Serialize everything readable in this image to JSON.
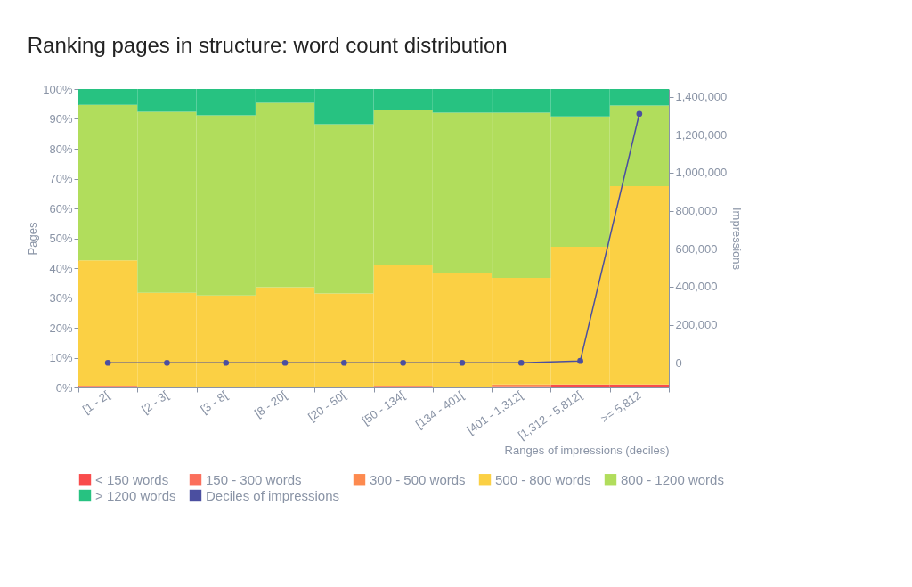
{
  "chart_data": {
    "type": "bar",
    "title": "Ranking pages in structure: word count distribution",
    "xlabel": "Ranges of impressions (deciles)",
    "ylabel": "Pages",
    "y2label": "Impressions",
    "stacked": true,
    "legend": "bottom",
    "grid": false,
    "categories": [
      "[1 - 2[",
      "[2 - 3[",
      "[3 - 8[",
      "[8 - 20[",
      "[20 - 50[",
      "[50 - 134[",
      "[134 - 401[",
      "[401 - 1,312[",
      "[1,312 - 5,812[",
      ">= 5,812"
    ],
    "ylim": [
      0,
      100
    ],
    "yticks": [
      {
        "value": 0,
        "label": "0%"
      },
      {
        "value": 10,
        "label": "10%"
      },
      {
        "value": 20,
        "label": "20%"
      },
      {
        "value": 30,
        "label": "30%"
      },
      {
        "value": 40,
        "label": "40%"
      },
      {
        "value": 50,
        "label": "50%"
      },
      {
        "value": 60,
        "label": "60%"
      },
      {
        "value": 70,
        "label": "70%"
      },
      {
        "value": 80,
        "label": "80%"
      },
      {
        "value": 90,
        "label": "90%"
      },
      {
        "value": 100,
        "label": "100%"
      }
    ],
    "y2lim": [
      -130000,
      1440000
    ],
    "y2ticks": [
      0,
      {
        "value": 200000,
        "label": "200,000"
      },
      {
        "value": 400000,
        "label": "400,000"
      },
      {
        "value": 600000,
        "label": "600,000"
      },
      {
        "value": 800000,
        "label": "800,000"
      },
      {
        "value": 1000000,
        "label": "1,000,000"
      },
      {
        "value": 1200000,
        "label": "1,200,000"
      },
      {
        "value": 1400000,
        "label": "1,400,000"
      }
    ],
    "series": [
      {
        "name": "< 150 words",
        "color": "#f94c4c",
        "values": [
          0.5,
          0,
          0,
          0,
          0,
          0.5,
          0,
          0,
          1.0,
          1.0
        ]
      },
      {
        "name": "150 - 300 words",
        "color": "#fb6f5c",
        "values": [
          0,
          0,
          0,
          0,
          0,
          0,
          0,
          0.5,
          0,
          0
        ]
      },
      {
        "name": "300 - 500 words",
        "color": "#fd8a4f",
        "values": [
          0,
          0,
          0,
          0,
          0,
          0,
          0,
          0.5,
          0,
          0
        ]
      },
      {
        "name": "500 - 800 words",
        "color": "#fbd044",
        "values": [
          42.1,
          31.7,
          30.8,
          33.6,
          31.5,
          40.4,
          38.4,
          35.7,
          46.2,
          66.5
        ]
      },
      {
        "name": "800 - 1200 words",
        "color": "#b1dd5c",
        "values": [
          52.1,
          60.7,
          60.4,
          61.8,
          56.7,
          52.1,
          53.7,
          55.4,
          43.6,
          27.0
        ]
      },
      {
        "name": "> 1200 words",
        "color": "#27c281",
        "values": [
          5.3,
          7.6,
          8.8,
          4.6,
          11.8,
          7.0,
          7.9,
          7.9,
          9.2,
          5.5
        ]
      },
      {
        "name": "Deciles of impressions",
        "type": "line",
        "axis": "y2",
        "marker": "circle",
        "color": "#4b4fa0",
        "values": [
          0,
          0,
          0,
          0,
          0,
          0,
          0,
          0,
          10000,
          1310000
        ]
      }
    ]
  }
}
